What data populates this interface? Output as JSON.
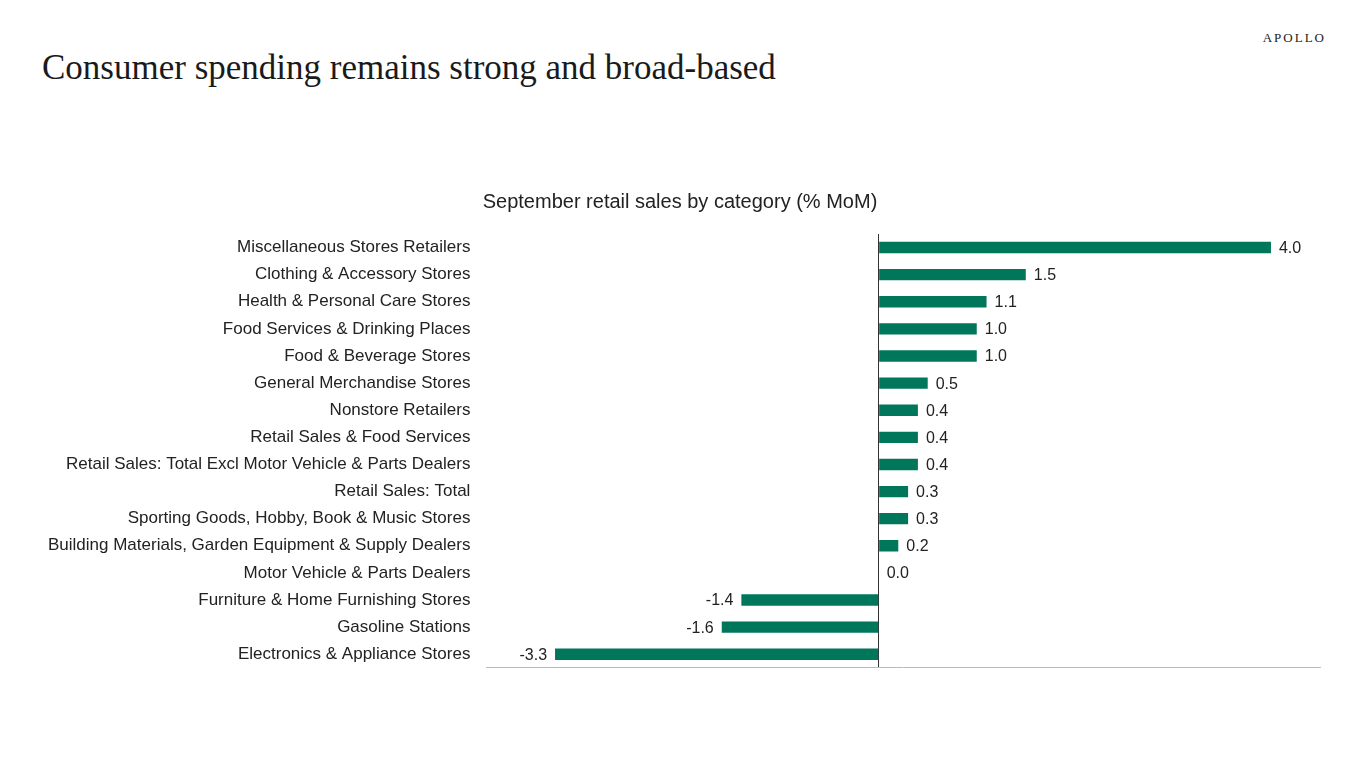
{
  "header": {
    "title": "Consumer spending remains strong and broad-based",
    "logo": "APOLLO"
  },
  "chart_data": {
    "type": "bar",
    "orientation": "horizontal",
    "title": "September retail sales by category (% MoM)",
    "categories": [
      "Miscellaneous Stores Retailers",
      "Clothing & Accessory Stores",
      "Health & Personal Care Stores",
      "Food Services & Drinking Places",
      "Food & Beverage Stores",
      "General Merchandise Stores",
      "Nonstore Retailers",
      "Retail Sales & Food Services",
      "Retail Sales: Total Excl Motor Vehicle & Parts Dealers",
      "Retail Sales: Total",
      "Sporting Goods, Hobby, Book & Music Stores",
      "Building Materials, Garden Equipment & Supply Dealers",
      "Motor Vehicle & Parts Dealers",
      "Furniture & Home Furnishing Stores",
      "Gasoline Stations",
      "Electronics & Appliance Stores"
    ],
    "values": [
      4.0,
      1.5,
      1.1,
      1.0,
      1.0,
      0.5,
      0.4,
      0.4,
      0.4,
      0.3,
      0.3,
      0.2,
      0.0,
      -1.4,
      -1.6,
      -3.3
    ],
    "value_labels": [
      "4.0",
      "1.5",
      "1.1",
      "1.0",
      "1.0",
      "0.5",
      "0.4",
      "0.4",
      "0.4",
      "0.3",
      "0.3",
      "0.2",
      "0.0",
      "-1.4",
      "-1.6",
      "-3.3"
    ],
    "color": "#00775a",
    "xlim": [
      -4,
      4.5
    ],
    "xticks": [
      0
    ],
    "grid": true,
    "tick_labels": "y",
    "data_labels": true
  }
}
